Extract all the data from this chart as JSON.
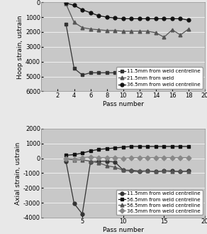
{
  "hoop": {
    "series": [
      {
        "label": "11.5mm from weld centreline",
        "marker": "s",
        "x": [
          3,
          4,
          5,
          6,
          7,
          8,
          9,
          10,
          11,
          12,
          13,
          14,
          15,
          16,
          17,
          18
        ],
        "y": [
          -1450,
          -4450,
          -4900,
          -4750,
          -4750,
          -4750,
          -4750,
          -4750,
          -4750,
          -4750,
          -4750,
          -4750,
          -4750,
          -4650,
          -4750,
          -4550
        ],
        "color": "#333333"
      },
      {
        "label": "21.5mm from weld",
        "marker": "^",
        "x": [
          3,
          4,
          5,
          6,
          7,
          8,
          9,
          10,
          11,
          12,
          13,
          14,
          15,
          16,
          17,
          18
        ],
        "y": [
          -100,
          -1350,
          -1700,
          -1800,
          -1850,
          -1900,
          -1900,
          -1950,
          -1950,
          -1950,
          -1950,
          -2050,
          -2350,
          -1850,
          -2200,
          -1800
        ],
        "color": "#555555"
      },
      {
        "label": "36.5mm from weld centreline",
        "marker": "o",
        "x": [
          3,
          4,
          5,
          6,
          7,
          8,
          9,
          10,
          11,
          12,
          13,
          14,
          15,
          16,
          17,
          18
        ],
        "y": [
          -50,
          -200,
          -500,
          -700,
          -900,
          -1000,
          -1050,
          -1100,
          -1100,
          -1100,
          -1100,
          -1100,
          -1100,
          -1100,
          -1100,
          -1200
        ],
        "color": "#111111"
      }
    ],
    "ylabel": "Hoop strain, ustrain",
    "xlabel": "Pass number",
    "ylim": [
      -6000,
      0
    ],
    "xlim": [
      0,
      20
    ],
    "ytick_vals": [
      0,
      -1000,
      -2000,
      -3000,
      -4000,
      -5000,
      -6000
    ],
    "ytick_labels": [
      "0",
      "1000",
      "2000",
      "3000",
      "4000",
      "5000",
      "6000"
    ],
    "xtick_vals": [
      2,
      4,
      6,
      8,
      10,
      12,
      14,
      16,
      18,
      20
    ],
    "xtick_labels": [
      "2",
      "4",
      "6",
      "8",
      "10",
      "12",
      "14",
      "16",
      "18",
      "20"
    ]
  },
  "axial": {
    "series": [
      {
        "label": "11.5mm from weld centreline",
        "marker": "o",
        "x": [
          3,
          4,
          5,
          6,
          7,
          8,
          9,
          10,
          11,
          12,
          13,
          14,
          15,
          16,
          17,
          18
        ],
        "y": [
          -200,
          -3050,
          -3750,
          -250,
          -200,
          -200,
          -250,
          -800,
          -850,
          -900,
          -850,
          -900,
          -850,
          -850,
          -900,
          -850
        ],
        "color": "#333333"
      },
      {
        "label": "56.5mm from weld centreline",
        "marker": "s",
        "x": [
          3,
          4,
          5,
          6,
          7,
          8,
          9,
          10,
          11,
          12,
          13,
          14,
          15,
          16,
          17,
          18
        ],
        "y": [
          200,
          250,
          350,
          500,
          600,
          650,
          700,
          750,
          800,
          800,
          800,
          800,
          800,
          800,
          800,
          800
        ],
        "color": "#111111"
      },
      {
        "label": "56.5mm from weld centreline",
        "marker": "^",
        "x": [
          3,
          4,
          5,
          6,
          7,
          8,
          9,
          10,
          11,
          12,
          13,
          14,
          15,
          16,
          17,
          18
        ],
        "y": [
          -50,
          -100,
          -100,
          -200,
          -300,
          -500,
          -600,
          -800,
          -800,
          -850,
          -850,
          -900,
          -850,
          -900,
          -850,
          -900
        ],
        "color": "#555555"
      },
      {
        "label": "36.5mm from weld centreline",
        "marker": "D",
        "x": [
          3,
          4,
          5,
          6,
          7,
          8,
          9,
          10,
          11,
          12,
          13,
          14,
          15,
          16,
          17,
          18
        ],
        "y": [
          0,
          -50,
          50,
          100,
          50,
          50,
          50,
          0,
          50,
          50,
          50,
          50,
          50,
          50,
          50,
          50
        ],
        "color": "#888888"
      }
    ],
    "ylabel": "Axial strain, ustrain",
    "xlabel": "Pass number",
    "ylim": [
      -4000,
      2000
    ],
    "xlim": [
      0,
      20
    ],
    "ytick_vals": [
      2000,
      1000,
      0,
      -1000,
      -2000,
      -3000,
      -4000
    ],
    "ytick_labels": [
      "2000",
      "1000",
      "0",
      "-1000",
      "-2000",
      "-3000",
      "-4000"
    ],
    "xtick_vals": [
      5,
      10,
      15,
      20
    ],
    "xtick_labels": [
      "5",
      "10",
      "15",
      "20"
    ]
  },
  "bg_color": "#c8c8c8",
  "outer_bg": "#e8e8e8",
  "markersize": 3.5,
  "linewidth": 0.9,
  "legend_fontsize": 5.0,
  "axis_label_fontsize": 6.5,
  "tick_fontsize": 6.0
}
